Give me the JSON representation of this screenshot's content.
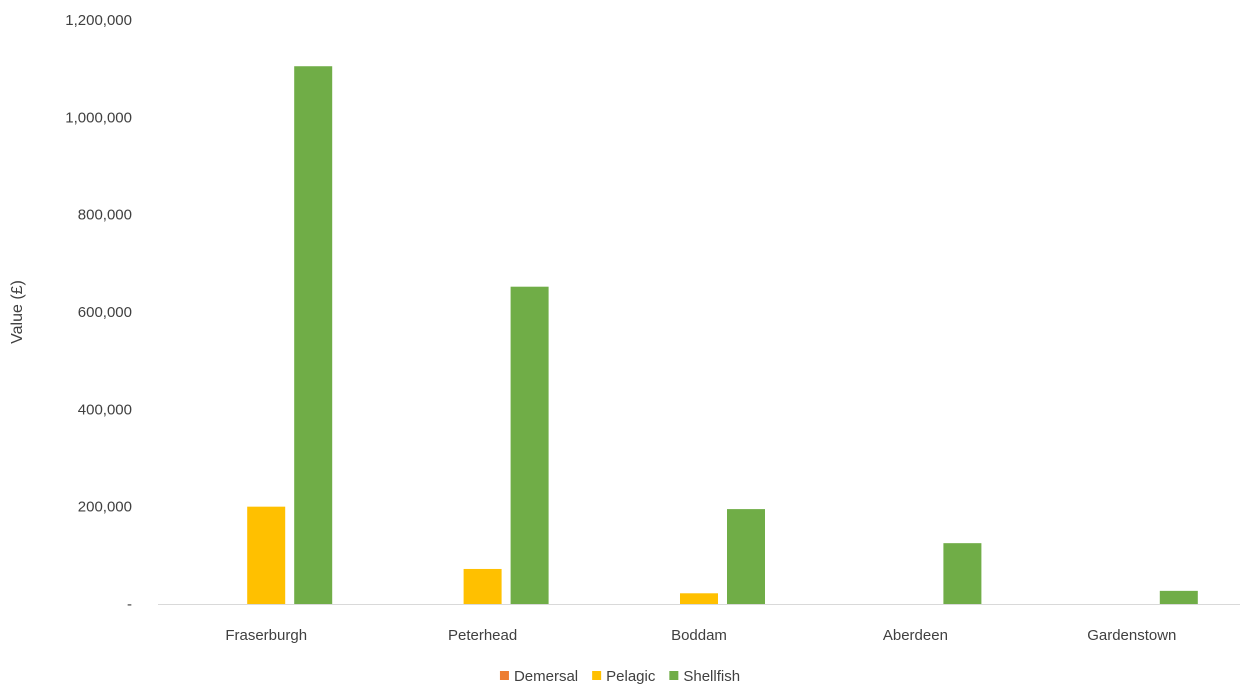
{
  "chart_data": {
    "type": "bar",
    "title": "",
    "xlabel": "",
    "ylabel": "Value (£)",
    "ylim": [
      0,
      1200000
    ],
    "yticks": [
      {
        "value": 0,
        "label": "-"
      },
      {
        "value": 200000,
        "label": "200,000"
      },
      {
        "value": 400000,
        "label": "400,000"
      },
      {
        "value": 600000,
        "label": "600,000"
      },
      {
        "value": 800000,
        "label": "800,000"
      },
      {
        "value": 1000000,
        "label": "1,000,000"
      },
      {
        "value": 1200000,
        "label": "1,200,000"
      }
    ],
    "categories": [
      "Fraserburgh",
      "Peterhead",
      "Boddam",
      "Aberdeen",
      "Gardenstown"
    ],
    "series": [
      {
        "name": "Demersal",
        "color": "#ED7D31",
        "values": [
          0,
          0,
          0,
          0,
          0
        ]
      },
      {
        "name": "Pelagic",
        "color": "#FFC000",
        "values": [
          200000,
          72000,
          22000,
          0,
          0
        ]
      },
      {
        "name": "Shellfish",
        "color": "#70AD47",
        "values": [
          1105000,
          652000,
          195000,
          125000,
          27000
        ]
      }
    ],
    "grid": false,
    "legend_position": "bottom",
    "axis_color": "#D9D9D9",
    "text_color": "#404040"
  }
}
